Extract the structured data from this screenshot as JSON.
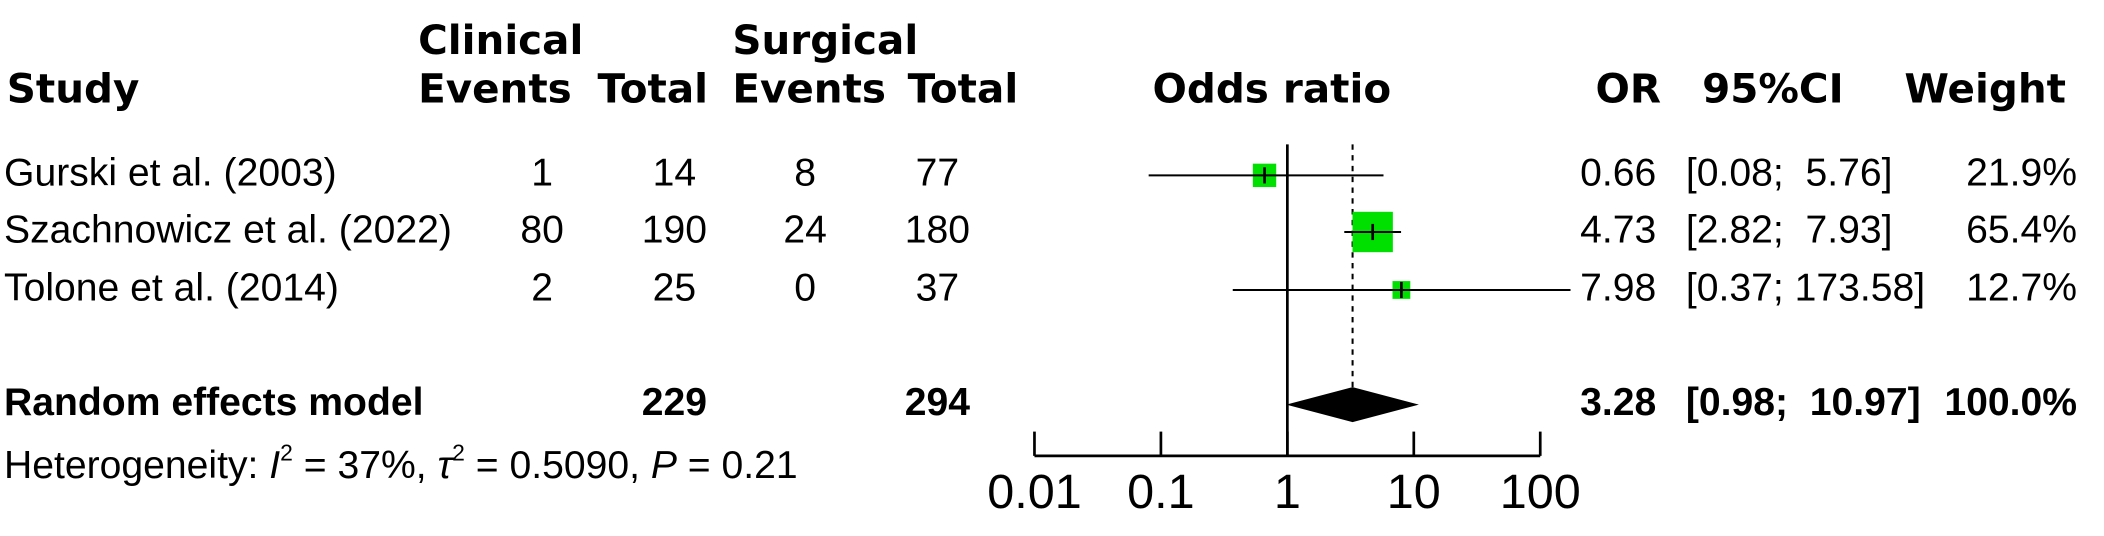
{
  "chart_data": {
    "type": "forest",
    "headers": {
      "study": "Study",
      "group1": "Clinical",
      "group2": "Surgical",
      "events1": "Events",
      "total1": "Total",
      "events2": "Events",
      "total2": "Total",
      "plot": "Odds ratio",
      "or": "OR",
      "ci": "95%CI",
      "weight": "Weight"
    },
    "studies": [
      {
        "name": "Gurski et al. (2003)",
        "events1": 1,
        "total1": 14,
        "events2": 8,
        "total2": 77,
        "or": 0.66,
        "ci_low": 0.08,
        "ci_high": 5.76,
        "ci_label": "[0.08;  5.76]",
        "weight": 21.9,
        "weight_label": "21.9%"
      },
      {
        "name": "Szachnowicz et al. (2022)",
        "events1": 80,
        "total1": 190,
        "events2": 24,
        "total2": 180,
        "or": 4.73,
        "ci_low": 2.82,
        "ci_high": 7.93,
        "ci_label": "[2.82;  7.93]",
        "weight": 65.4,
        "weight_label": "65.4%"
      },
      {
        "name": "Tolone et al. (2014)",
        "events1": 2,
        "total1": 25,
        "events2": 0,
        "total2": 37,
        "or": 7.98,
        "ci_low": 0.37,
        "ci_high": 173.58,
        "ci_label": "[0.37; 173.58]",
        "weight": 12.7,
        "weight_label": "12.7%"
      }
    ],
    "pooled": {
      "name": "Random effects model",
      "total1": 229,
      "total2": 294,
      "or": 3.28,
      "ci_low": 0.98,
      "ci_high": 10.97,
      "ci_label": "[0.98;  10.97]",
      "weight": 100.0,
      "weight_label": "100.0%"
    },
    "heterogeneity": [
      {
        "text": "Heterogeneity: ",
        "style": "normal"
      },
      {
        "text": "I",
        "style": "italic"
      },
      {
        "text": "2",
        "style": "sup"
      },
      {
        "text": " = 37%, ",
        "style": "normal"
      },
      {
        "text": "τ",
        "style": "italic"
      },
      {
        "text": "2",
        "style": "sup"
      },
      {
        "text": " = 0.5090, ",
        "style": "normal"
      },
      {
        "text": "P",
        "style": "italic"
      },
      {
        "text": " = 0.21",
        "style": "normal"
      }
    ],
    "xlim": [
      0.01,
      100
    ],
    "xticks": [
      0.01,
      0.1,
      1,
      10,
      100
    ],
    "log_x": true,
    "reference": 1,
    "square_color": "#00e000"
  }
}
